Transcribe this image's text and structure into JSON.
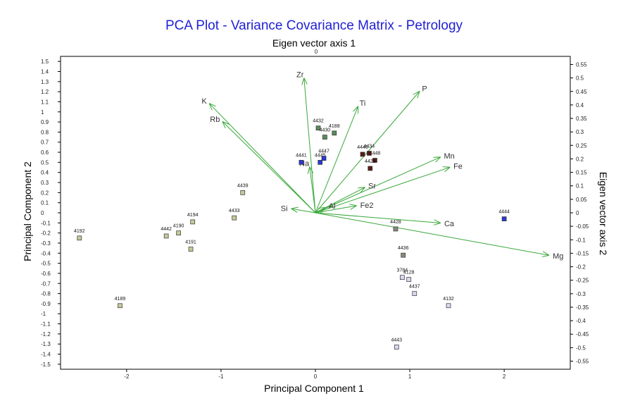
{
  "chart_data": {
    "type": "scatter",
    "title": "PCA Plot - Variance Covariance Matrix - Petrology",
    "xlabel": "Principal Component 1",
    "ylabel": "Principal Component 2",
    "top_axis_label": "Eigen vector axis 1",
    "top_axis_tick": "0",
    "right_axis_label": "Eigen vector axis 2",
    "xlim": [
      -2.7,
      2.7
    ],
    "ylim": [
      -1.55,
      1.55
    ],
    "right_ylim": [
      -0.58,
      0.58
    ],
    "x_ticks": [
      {
        "v": -2,
        "t": "-2"
      },
      {
        "v": -1,
        "t": "-1"
      },
      {
        "v": 0,
        "t": "0"
      },
      {
        "v": 1,
        "t": "1"
      },
      {
        "v": 2,
        "t": "2"
      }
    ],
    "y_ticks": [
      "1.5",
      "1.4",
      "1.3",
      "1.2",
      "1.1",
      "1",
      "0.9",
      "0.8",
      "0.7",
      "0.6",
      "0.5",
      "0.4",
      "0.3",
      "0.2",
      "0.1",
      "0",
      "-0.1",
      "-0.2",
      "-0.3",
      "-0.4",
      "-0.5",
      "-0.6",
      "-0.7",
      "-0.8",
      "-0.9",
      "-1",
      "-1.1",
      "-1.2",
      "-1.3",
      "-1.4",
      "-1.5"
    ],
    "right_y_ticks": [
      "0.55",
      "0.5",
      "0.45",
      "0.4",
      "0.35",
      "0.3",
      "0.25",
      "0.2",
      "0.15",
      "0.1",
      "0.05",
      "0",
      "-0.05",
      "-0.1",
      "-0.15",
      "-0.2",
      "-0.25",
      "-0.3",
      "-0.35",
      "-0.4",
      "-0.45",
      "-0.5",
      "-0.55"
    ],
    "vector_color": "#3aa83a",
    "vectors": [
      {
        "label": "Zr",
        "x": -0.12,
        "y": 1.33
      },
      {
        "label": "P",
        "x": 1.1,
        "y": 1.2
      },
      {
        "label": "Ti",
        "x": 0.45,
        "y": 1.05
      },
      {
        "label": "K",
        "x": -1.12,
        "y": 1.08
      },
      {
        "label": "Rb",
        "x": -0.98,
        "y": 0.9
      },
      {
        "label": "Mn",
        "x": 1.32,
        "y": 0.55
      },
      {
        "label": "Fe",
        "x": 1.42,
        "y": 0.45
      },
      {
        "label": "Na",
        "x": -0.06,
        "y": 0.45
      },
      {
        "label": "Sr",
        "x": 0.52,
        "y": 0.25
      },
      {
        "label": "Al",
        "x": 0.1,
        "y": 0.05
      },
      {
        "label": "Fe2",
        "x": 0.43,
        "y": 0.07
      },
      {
        "label": "Si",
        "x": -0.25,
        "y": 0.04
      },
      {
        "label": "Ca",
        "x": 1.32,
        "y": -0.1
      },
      {
        "label": "Mg",
        "x": 2.47,
        "y": -0.42
      }
    ],
    "points": [
      {
        "id": "4192",
        "x": -2.5,
        "y": -0.25,
        "color": "#c8c89a"
      },
      {
        "id": "4189",
        "x": -2.07,
        "y": -0.92,
        "color": "#c8c89a"
      },
      {
        "id": "4442",
        "x": -1.58,
        "y": -0.23,
        "color": "#c8c89a"
      },
      {
        "id": "4190",
        "x": -1.45,
        "y": -0.2,
        "color": "#c8c89a"
      },
      {
        "id": "4191",
        "x": -1.32,
        "y": -0.36,
        "color": "#c8c89a"
      },
      {
        "id": "4194",
        "x": -1.3,
        "y": -0.09,
        "color": "#c8c89a"
      },
      {
        "id": "4433",
        "x": -0.86,
        "y": -0.05,
        "color": "#c8c89a"
      },
      {
        "id": "4439",
        "x": -0.77,
        "y": 0.2,
        "color": "#c8c89a"
      },
      {
        "id": "4441",
        "x": -0.15,
        "y": 0.5,
        "color": "#2a3ad0"
      },
      {
        "id": "4445",
        "x": 0.05,
        "y": 0.5,
        "color": "#2a3ad0"
      },
      {
        "id": "4447",
        "x": 0.09,
        "y": 0.54,
        "color": "#2a3ad0"
      },
      {
        "id": "4432",
        "x": 0.03,
        "y": 0.84,
        "color": "#5c8a5c"
      },
      {
        "id": "4430",
        "x": 0.1,
        "y": 0.75,
        "color": "#5c8a5c"
      },
      {
        "id": "4188",
        "x": 0.2,
        "y": 0.79,
        "color": "#5c8a5c"
      },
      {
        "id": "4446",
        "x": 0.5,
        "y": 0.58,
        "color": "#5a1a1a"
      },
      {
        "id": "4434",
        "x": 0.57,
        "y": 0.59,
        "color": "#5a1a1a"
      },
      {
        "id": "4448",
        "x": 0.63,
        "y": 0.52,
        "color": "#5a1a1a"
      },
      {
        "id": "4429",
        "x": 0.58,
        "y": 0.44,
        "color": "#5a1a1a"
      },
      {
        "id": "4428",
        "x": 0.85,
        "y": -0.16,
        "color": "#8a8a80"
      },
      {
        "id": "4436",
        "x": 0.93,
        "y": -0.42,
        "color": "#8a8a80"
      },
      {
        "id": "3784",
        "x": 0.92,
        "y": -0.64,
        "color": "#d8d8f0"
      },
      {
        "id": "4128",
        "x": 0.99,
        "y": -0.66,
        "color": "#d8d8f0"
      },
      {
        "id": "4437",
        "x": 1.05,
        "y": -0.8,
        "color": "#d8d8f0"
      },
      {
        "id": "4132",
        "x": 1.41,
        "y": -0.92,
        "color": "#d8d8f0"
      },
      {
        "id": "4443",
        "x": 0.86,
        "y": -1.33,
        "color": "#d8d8f0"
      },
      {
        "id": "4444",
        "x": 2.0,
        "y": -0.06,
        "color": "#2a3ad0"
      }
    ]
  }
}
